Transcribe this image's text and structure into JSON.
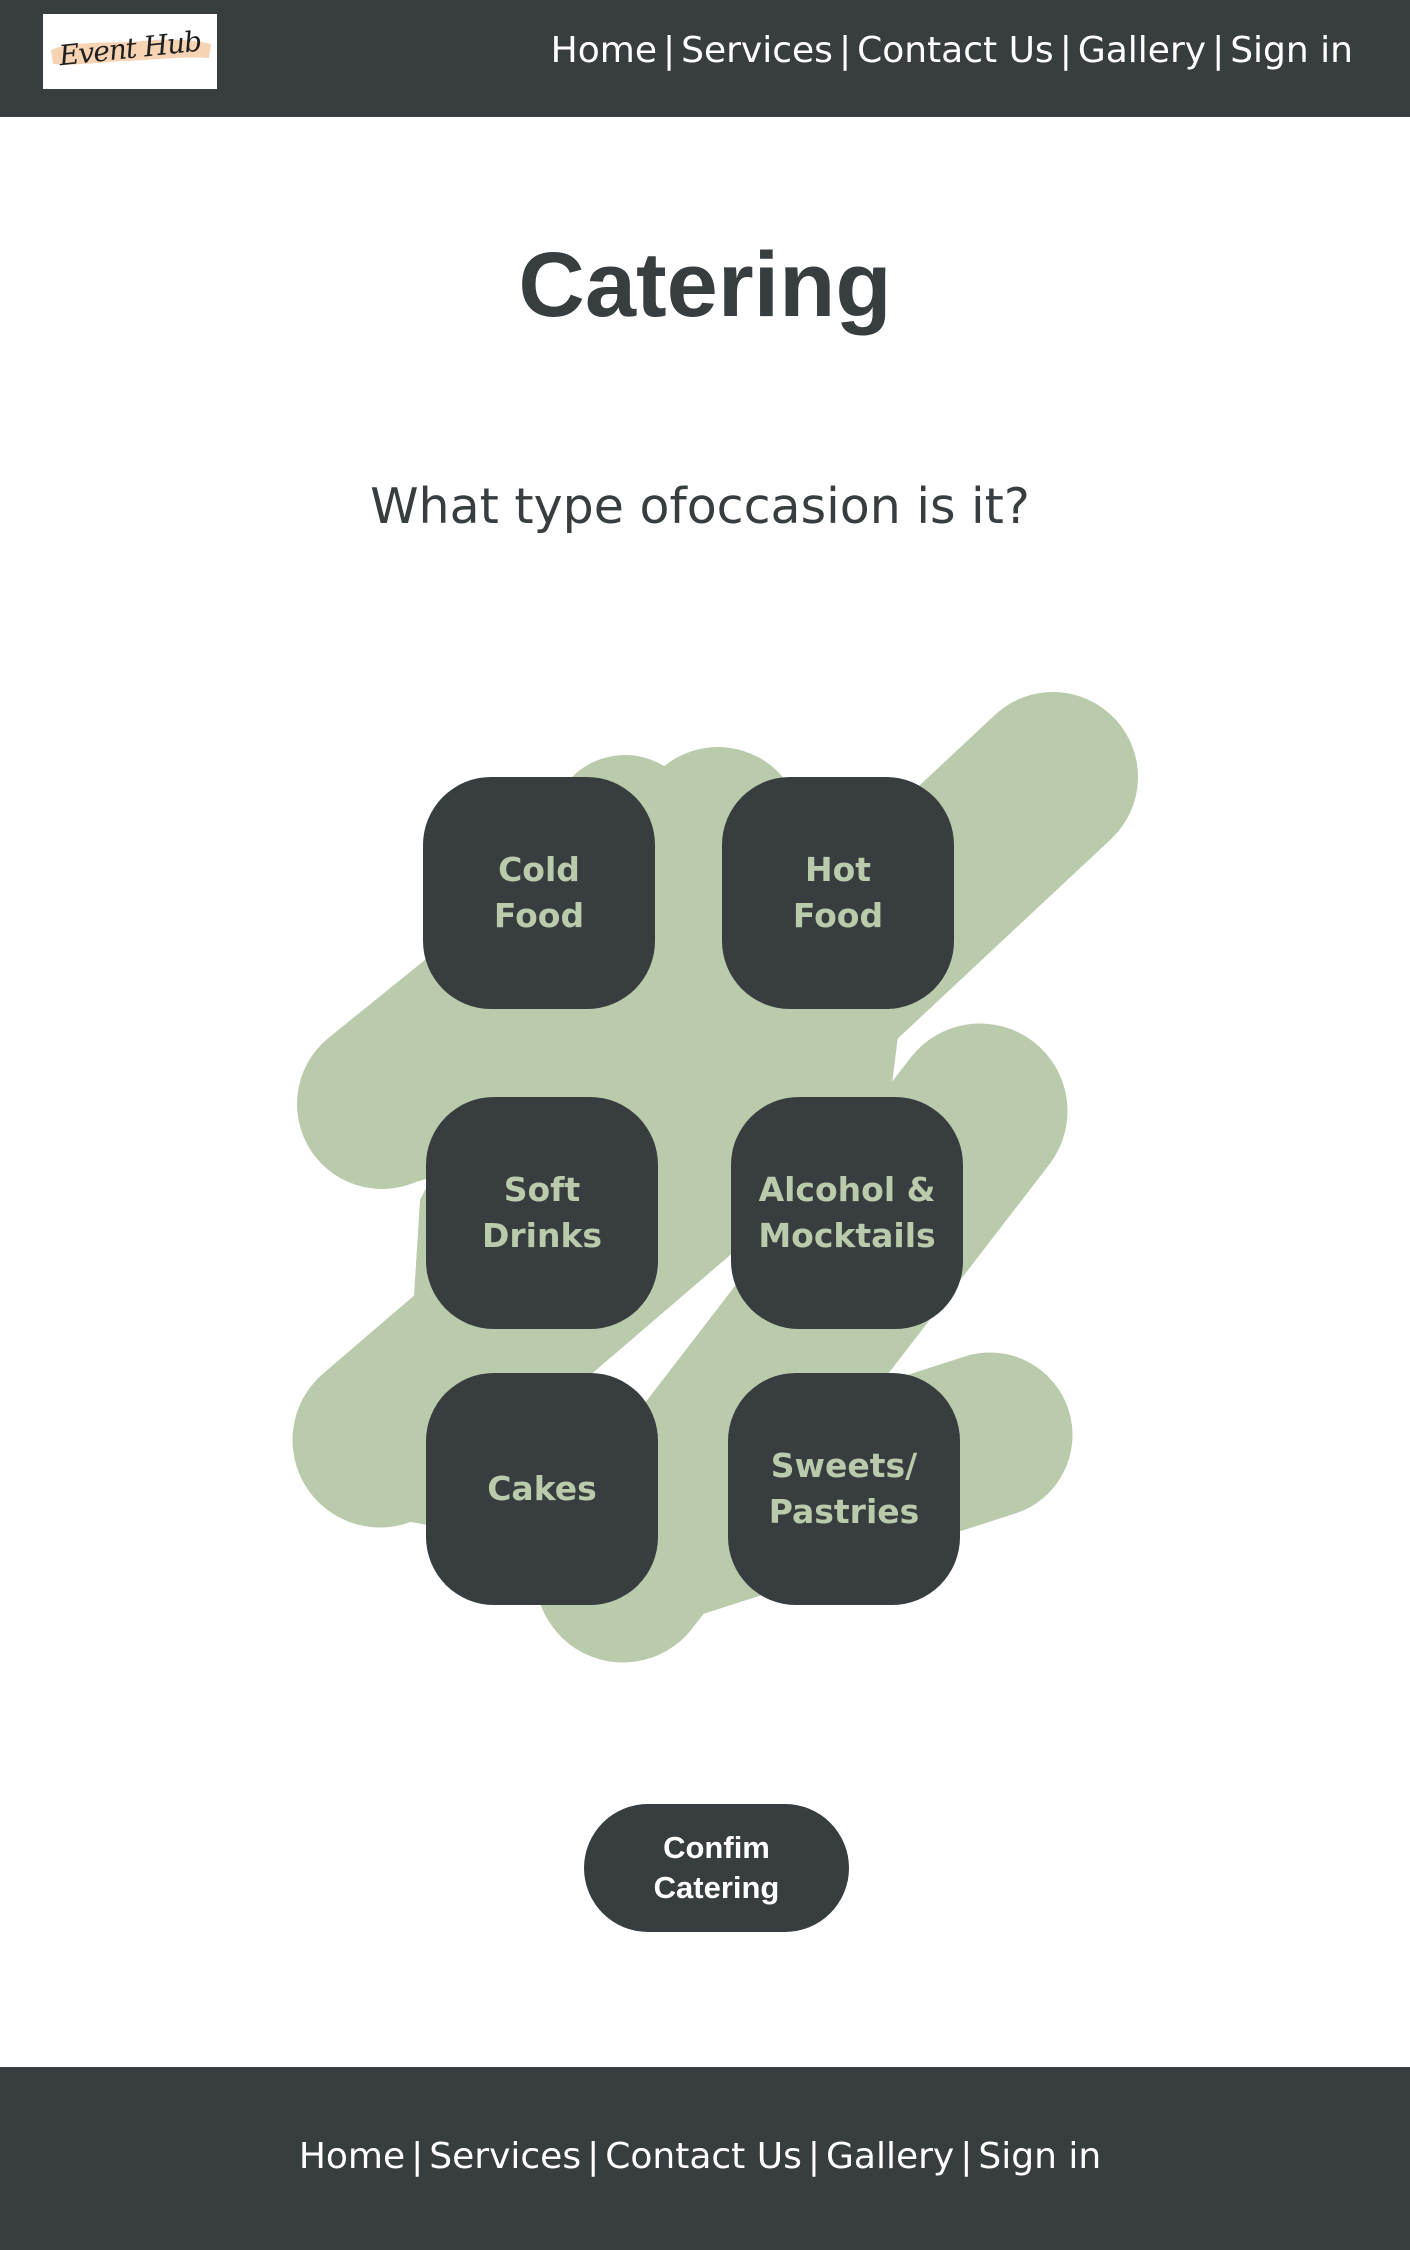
{
  "header": {
    "logo_text": "Event Hub",
    "nav": {
      "home": "Home",
      "services": "Services",
      "contact": "Contact Us",
      "gallery": "Gallery",
      "signin": "Sign in",
      "separator": "|"
    }
  },
  "main": {
    "title": "Catering",
    "question": "What type ofoccasion is it?",
    "options": {
      "cold_food": "Cold\nFood",
      "hot_food": "Hot\nFood",
      "soft_drinks": "Soft\nDrinks",
      "alcohol": "Alcohol &\nMocktails",
      "cakes": "Cakes",
      "sweets": "Sweets/\nPastries"
    },
    "confirm_label": "Confim\nCatering"
  },
  "footer": {
    "nav": {
      "home": "Home",
      "services": "Services",
      "contact": "Contact Us",
      "gallery": "Gallery",
      "signin": "Sign in",
      "separator": "|"
    }
  },
  "colors": {
    "dark": "#383d40",
    "sage": "#b9cbab",
    "white": "#ffffff",
    "logo_brush": "#f6d3b3"
  }
}
